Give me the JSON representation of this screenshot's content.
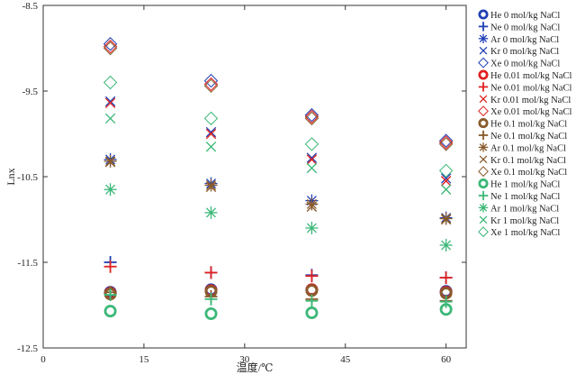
{
  "chart_data": {
    "type": "scatter",
    "xlabel": "温度/℃",
    "ylabel": "Lnx",
    "xlim": [
      0,
      63
    ],
    "ylim": [
      -12.5,
      -8.5
    ],
    "xticks": [
      0,
      15,
      30,
      45,
      60
    ],
    "yticks": [
      -8.5,
      -9.5,
      -10.5,
      -11.5,
      -12.5
    ],
    "tick_labels_x": [
      "0",
      "15",
      "30",
      "45",
      "60"
    ],
    "tick_labels_y": [
      "-8.5",
      "-9.5",
      "-10.5",
      "-11.5",
      "-12.5"
    ],
    "grid": false,
    "legend_position": "right",
    "x": [
      10,
      25,
      40,
      60
    ],
    "series": [
      {
        "name": "He  0 mol/kg NaCl",
        "marker": "circle",
        "color": "#1f3fb5",
        "values": [
          -11.85,
          -11.82,
          -11.82,
          -11.84
        ]
      },
      {
        "name": "Ne  0 mol/kg NaCl",
        "marker": "plus",
        "color": "#1f3fb5",
        "values": [
          -11.5,
          -11.62,
          -11.65,
          -11.68
        ]
      },
      {
        "name": "Ar  0 mol/kg NaCl",
        "marker": "star",
        "color": "#1f3fb5",
        "values": [
          -10.3,
          -10.58,
          -10.78,
          -10.98
        ]
      },
      {
        "name": "Kr  0 mol/kg NaCl",
        "marker": "x",
        "color": "#1f3fb5",
        "values": [
          -9.62,
          -9.98,
          -10.28,
          -10.52
        ]
      },
      {
        "name": "Xe  0 mol/kg NaCl",
        "marker": "diamond",
        "color": "#1f3fb5",
        "values": [
          -8.95,
          -9.38,
          -9.78,
          -10.08
        ]
      },
      {
        "name": "He  0.01 mol/kg NaCl",
        "marker": "circle",
        "color": "#e02020",
        "values": [
          -11.86,
          -11.83,
          -11.82,
          -11.85
        ]
      },
      {
        "name": "Ne  0.01 mol/kg NaCl",
        "marker": "plus",
        "color": "#e02020",
        "values": [
          -11.55,
          -11.62,
          -11.66,
          -11.68
        ]
      },
      {
        "name": "Kr  0.01 mol/kg NaCl",
        "marker": "x",
        "color": "#e02020",
        "values": [
          -9.64,
          -10.0,
          -10.3,
          -10.55
        ]
      },
      {
        "name": "Xe  0.01 mol/kg NaCl",
        "marker": "diamond",
        "color": "#e02020",
        "values": [
          -8.98,
          -9.42,
          -9.8,
          -10.1
        ]
      },
      {
        "name": "He  0.1 mol/kg NaCl",
        "marker": "circle",
        "color": "#8a5a2b",
        "values": [
          -11.87,
          -11.84,
          -11.83,
          -11.86
        ]
      },
      {
        "name": "Ne  0.1 mol/kg NaCl",
        "marker": "plus",
        "color": "#8a5a2b",
        "values": [
          -11.85,
          -11.9,
          -11.93,
          -11.95
        ]
      },
      {
        "name": "Ar  0.1 mol/kg NaCl",
        "marker": "star",
        "color": "#8a5a2b",
        "values": [
          -10.32,
          -10.6,
          -10.82,
          -10.99
        ]
      },
      {
        "name": "Kr  0.1 mol/kg NaCl",
        "marker": "x",
        "color": "#8a5a2b",
        "values": [
          -10.33,
          -10.62,
          -10.85,
          -11.0
        ]
      },
      {
        "name": "Xe  0.1 mol/kg NaCl",
        "marker": "diamond",
        "color": "#8a5a2b",
        "values": [
          -9.0,
          -9.44,
          -9.82,
          -10.12
        ]
      },
      {
        "name": "He  1 mol/kg NaCl",
        "marker": "circle",
        "color": "#3cb878",
        "values": [
          -12.07,
          -12.1,
          -12.09,
          -12.05
        ]
      },
      {
        "name": "Ne  1 mol/kg NaCl",
        "marker": "plus",
        "color": "#3cb878",
        "values": [
          -11.88,
          -11.93,
          -11.95,
          -11.96
        ]
      },
      {
        "name": "Ar  1 mol/kg NaCl",
        "marker": "star",
        "color": "#3cb878",
        "values": [
          -10.65,
          -10.92,
          -11.1,
          -11.3
        ]
      },
      {
        "name": "Kr  1 mol/kg NaCl",
        "marker": "x",
        "color": "#3cb878",
        "values": [
          -9.82,
          -10.15,
          -10.4,
          -10.65
        ]
      },
      {
        "name": "Xe  1 mol/kg NaCl",
        "marker": "diamond",
        "color": "#3cb878",
        "values": [
          -9.4,
          -9.82,
          -10.12,
          -10.43
        ]
      }
    ]
  }
}
